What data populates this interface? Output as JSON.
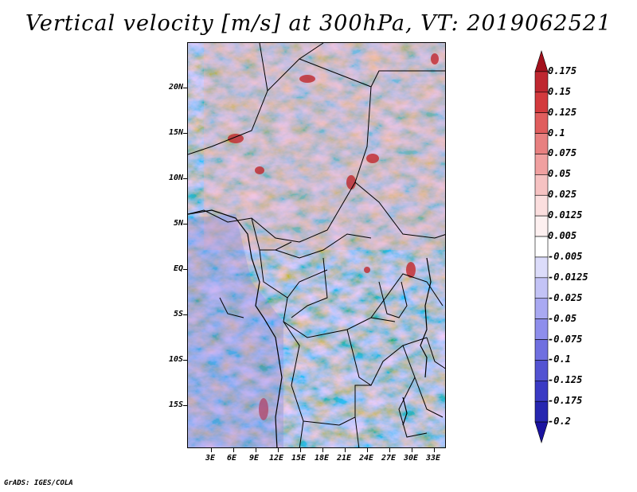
{
  "title": "Vertical velocity [m/s] at 300hPa, VT: 2019062521",
  "footer": "GrADS: IGES/COLA",
  "map": {
    "lat_labels": [
      "20N",
      "15N",
      "10N",
      "5N",
      "EQ",
      "5S",
      "10S",
      "15S"
    ],
    "lon_labels": [
      "3E",
      "6E",
      "9E",
      "12E",
      "15E",
      "18E",
      "21E",
      "24E",
      "27E",
      "30E",
      "33E"
    ]
  },
  "colorbar": {
    "labels": [
      "0.175",
      "0.15",
      "0.125",
      "0.1",
      "0.075",
      "0.05",
      "0.025",
      "0.0125",
      "0.005",
      "-0.005",
      "-0.0125",
      "-0.025",
      "-0.05",
      "-0.075",
      "-0.1",
      "-0.125",
      "-0.175",
      "-0.2"
    ],
    "colors": [
      "#a3111d",
      "#bf2730",
      "#d33a3d",
      "#e05d5d",
      "#e88080",
      "#f0a0a0",
      "#f6c2c2",
      "#fbdede",
      "#fdf0f0",
      "#ffffff",
      "#dcdcfa",
      "#c3c3f6",
      "#a9a9f2",
      "#8e8eec",
      "#6f6fe0",
      "#5353d2",
      "#3a3ac4",
      "#2626b0",
      "#1a12a0"
    ]
  }
}
